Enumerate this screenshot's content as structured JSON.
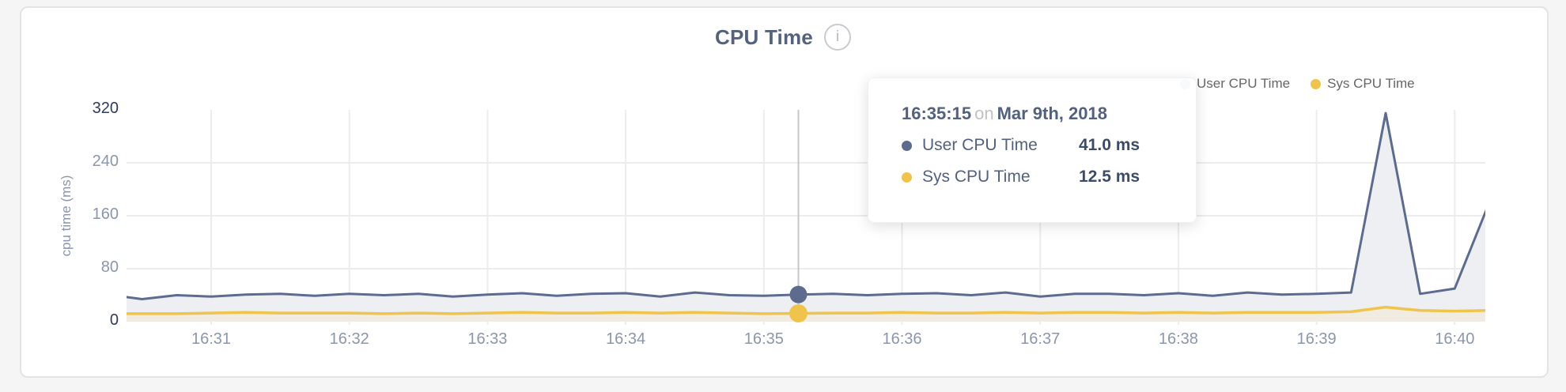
{
  "header": {
    "info_icon_glyph": "i"
  },
  "chart_data": {
    "type": "area",
    "title": "CPU Time",
    "ylabel": "cpu time (ms)",
    "ylim": [
      0,
      320
    ],
    "y_ticks": [
      0,
      80,
      160,
      240,
      320
    ],
    "x_tick_labels": [
      "16:31",
      "16:32",
      "16:33",
      "16:34",
      "16:35",
      "16:36",
      "16:37",
      "16:38",
      "16:39",
      "16:40"
    ],
    "grid": true,
    "legend_position": "top-right",
    "legend": [
      {
        "label": "User CPU Time",
        "color": "#5d6c8e"
      },
      {
        "label": "Sys CPU Time",
        "color": "#f0c44c"
      }
    ],
    "times": [
      "16:30:15",
      "16:30:30",
      "16:30:45",
      "16:31:00",
      "16:31:15",
      "16:31:30",
      "16:31:45",
      "16:32:00",
      "16:32:15",
      "16:32:30",
      "16:32:45",
      "16:33:00",
      "16:33:15",
      "16:33:30",
      "16:33:45",
      "16:34:00",
      "16:34:15",
      "16:34:30",
      "16:34:45",
      "16:35:00",
      "16:35:15",
      "16:35:30",
      "16:35:45",
      "16:36:00",
      "16:36:15",
      "16:36:30",
      "16:36:45",
      "16:37:00",
      "16:37:15",
      "16:37:30",
      "16:37:45",
      "16:38:00",
      "16:38:15",
      "16:38:30",
      "16:38:45",
      "16:39:00",
      "16:39:15",
      "16:39:30",
      "16:39:45",
      "16:40:00",
      "16:40:15"
    ],
    "series": [
      {
        "name": "User CPU Time",
        "color": "#5d6c8e",
        "fill": "#edeff3",
        "unit": "ms",
        "values": [
          41,
          34,
          40,
          38,
          41,
          42,
          39,
          42,
          40,
          42,
          38,
          41,
          43,
          39,
          42,
          43,
          38,
          44,
          40,
          39,
          41,
          42,
          40,
          42,
          43,
          40,
          44,
          38,
          42,
          42,
          40,
          43,
          39,
          44,
          41,
          42,
          44,
          315,
          42,
          50,
          180
        ]
      },
      {
        "name": "Sys CPU Time",
        "color": "#f0c44c",
        "fill": "#f0ece2",
        "unit": "ms",
        "values": [
          12,
          12,
          12,
          13,
          14,
          13,
          13,
          13,
          12,
          13,
          12,
          13,
          14,
          13,
          13,
          14,
          13,
          14,
          13,
          12,
          12.5,
          13,
          13,
          14,
          13,
          13,
          14,
          13,
          14,
          14,
          13,
          14,
          13,
          14,
          14,
          14,
          15,
          22,
          17,
          16,
          17
        ]
      }
    ],
    "hover_index": 20
  },
  "tooltip": {
    "time": "16:35:15",
    "conjunction": "on",
    "date": "Mar 9th, 2018",
    "rows": [
      {
        "label": "User CPU Time",
        "value": "41.0 ms",
        "color": "#5d6c8e"
      },
      {
        "label": "Sys CPU Time",
        "value": "12.5 ms",
        "color": "#f0c44c"
      }
    ]
  },
  "colors": {
    "page_bg": "#f5f5f6",
    "card_bg": "#ffffff",
    "card_border": "#e3e3e4",
    "grid": "#ececec",
    "hover_line": "#c6c6c6",
    "tick_major": "#2f3b5c",
    "tick_minor": "#8b96ad",
    "title": "#54627e",
    "legend_text": "#666666"
  }
}
